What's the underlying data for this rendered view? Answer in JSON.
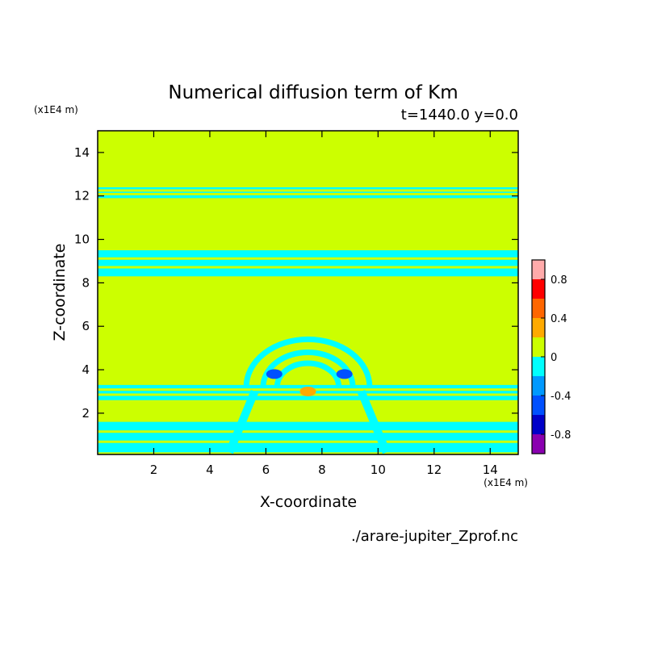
{
  "chart_data": {
    "type": "heatmap",
    "title": "Numerical diffusion term of Km",
    "subtitle": "t=1440.0 y=0.0",
    "xlabel": "X-coordinate",
    "ylabel": "Z-coordinate",
    "x_unit": "(x1E4 m)",
    "y_unit": "(x1E4 m)",
    "source_file": "./arare-jupiter_Zprof.nc",
    "xlim": [
      0,
      15
    ],
    "ylim": [
      0.1,
      15
    ],
    "x_ticks": [
      2,
      4,
      6,
      8,
      10,
      12,
      14
    ],
    "y_ticks": [
      2,
      4,
      6,
      8,
      10,
      12,
      14
    ],
    "colorbar": {
      "levels": [
        -1.0,
        -0.8,
        -0.6,
        -0.4,
        -0.2,
        0,
        0.2,
        0.4,
        0.6,
        0.8,
        1.0
      ],
      "colors": [
        "#8a00b0",
        "#0000c8",
        "#0050ff",
        "#0099ff",
        "#00ffff",
        "#ccff00",
        "#ffaa00",
        "#ff6600",
        "#ff0000",
        "#ffaaaa"
      ],
      "tick_labels": [
        "-0.8",
        "-0.4",
        "0",
        "0.4",
        "0.8"
      ],
      "tick_values": [
        -0.8,
        -0.4,
        0,
        0.4,
        0.8
      ]
    },
    "background_value": 0.1,
    "bands": [
      {
        "z": [
          11.9,
          12.4
        ],
        "value": -0.1
      },
      {
        "z": [
          8.3,
          9.5
        ],
        "value": -0.1
      },
      {
        "z": [
          2.6,
          3.3
        ],
        "value": -0.1
      },
      {
        "z": [
          0.2,
          1.6
        ],
        "value": -0.1
      }
    ],
    "arcs": [
      {
        "cx": 7.5,
        "cz": 3.2,
        "r": 1.1,
        "value": -0.1
      },
      {
        "cx": 7.5,
        "cz": 3.2,
        "r": 1.6,
        "value": -0.1
      },
      {
        "cx": 7.5,
        "cz": 3.2,
        "r": 2.2,
        "value": -0.1
      }
    ],
    "extremes": [
      {
        "x": 6.3,
        "z": 3.8,
        "value": -0.5
      },
      {
        "x": 8.8,
        "z": 3.8,
        "value": -0.5
      },
      {
        "x": 7.5,
        "z": 3.0,
        "value": 0.3
      }
    ]
  }
}
